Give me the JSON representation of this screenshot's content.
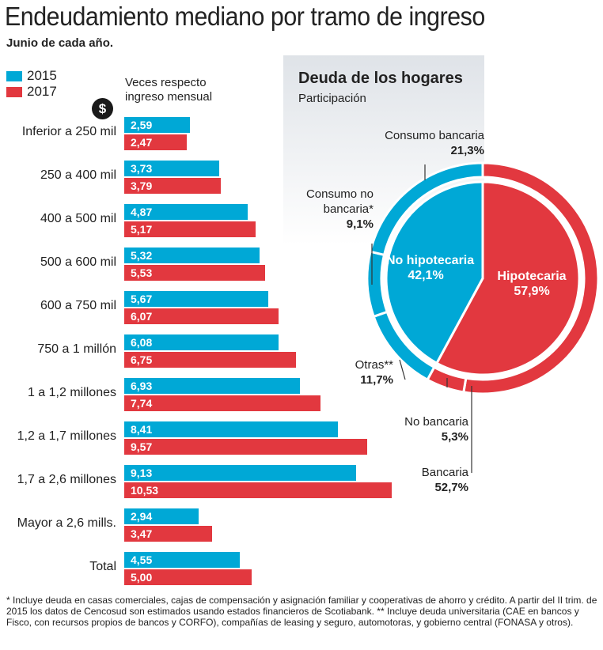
{
  "title": "Endeudamiento mediano por tramo de ingreso",
  "subtitle": "Junio de cada año.",
  "colors": {
    "s2015": "#00a8d6",
    "s2017": "#e2383f"
  },
  "unit_label": "Veces respecto ingreso mensual",
  "dollar_icon": "$",
  "chart_data": [
    {
      "type": "bar",
      "orientation": "horizontal",
      "ylabel": "Veces respecto ingreso mensual",
      "categories": [
        "Inferior a 250 mil",
        "250 a 400 mil",
        "400 a 500 mil",
        "500 a 600 mil",
        "600 a 750 mil",
        "750 a 1 millón",
        "1 a 1,2 millones",
        "1,2 a 1,7 millones",
        "1,7 a 2,6 millones",
        "Mayor a 2,6 mills.",
        "Total"
      ],
      "series": [
        {
          "name": "2015",
          "values": [
            2.59,
            3.73,
            4.87,
            5.32,
            5.67,
            6.08,
            6.93,
            8.41,
            9.13,
            2.94,
            4.55
          ],
          "labels": [
            "2,59",
            "3,73",
            "4,87",
            "5,32",
            "5,67",
            "6,08",
            "6,93",
            "8,41",
            "9,13",
            "2,94",
            "4,55"
          ]
        },
        {
          "name": "2017",
          "values": [
            2.47,
            3.79,
            5.17,
            5.53,
            6.07,
            6.75,
            7.74,
            9.57,
            10.53,
            3.47,
            5.0
          ],
          "labels": [
            "2,47",
            "3,79",
            "5,17",
            "5,53",
            "6,07",
            "6,75",
            "7,74",
            "9,57",
            "10,53",
            "3,47",
            "5,00"
          ]
        }
      ]
    },
    {
      "type": "pie",
      "title": "Deuda de los hogares",
      "subtitle": "Participación",
      "inner": [
        {
          "name": "Hipotecaria",
          "value": 57.9,
          "label": "57,9%",
          "color": "#e2383f"
        },
        {
          "name": "No hipotecaria",
          "value": 42.1,
          "label": "42,1%",
          "color": "#00a8d6"
        }
      ],
      "outer": [
        {
          "name": "Bancaria",
          "value": 52.7,
          "label": "52,7%",
          "color": "#e2383f"
        },
        {
          "name": "No bancaria",
          "value": 5.3,
          "label": "5,3%",
          "color": "#e2383f"
        },
        {
          "name": "Otras**",
          "value": 11.7,
          "label": "11,7%",
          "color": "#00a8d6"
        },
        {
          "name": "Consumo no bancaria*",
          "value": 9.1,
          "label": "9,1%",
          "color": "#00a8d6"
        },
        {
          "name": "Consumo bancaria",
          "value": 21.3,
          "label": "21,3%",
          "color": "#00a8d6"
        }
      ]
    }
  ],
  "footnote": "* Incluye deuda en casas comerciales, cajas de compensación y asignación familiar y cooperativas de ahorro y crédito. A partir del II trim. de 2015 los datos de Cencosud son estimados usando estados financieros de Scotiabank. ** Incluye deuda universitaria (CAE en bancos y Fisco, con recursos propios de bancos y CORFO), compañías de leasing y seguro, automotoras, y gobierno central (FONASA y otros)."
}
